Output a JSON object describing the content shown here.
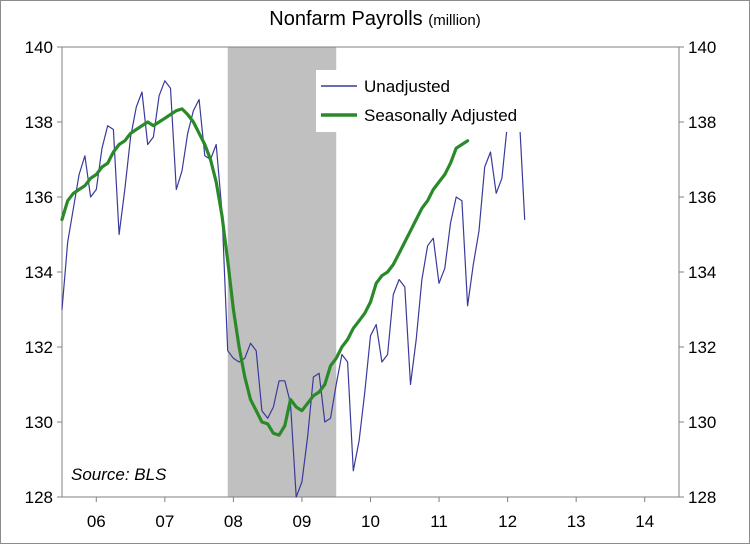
{
  "chart_data": {
    "type": "line",
    "title": "Nonfarm Payrolls",
    "title_unit": "(million)",
    "x_tick_labels": [
      "06",
      "07",
      "08",
      "09",
      "10",
      "11",
      "12",
      "13",
      "14"
    ],
    "x_range": [
      2005.5,
      2014.5
    ],
    "ylim": [
      128,
      140
    ],
    "y_ticks": [
      128,
      130,
      132,
      134,
      136,
      138,
      140
    ],
    "y_axes": "left and right, identical scale",
    "grid": false,
    "legend_position": "top-center",
    "recession_shading": {
      "start": 2007.917,
      "end": 2009.5,
      "color": "#c0c0c0"
    },
    "annotation": "Source: BLS",
    "series": [
      {
        "name": "Unadjusted",
        "color": "#3a3a9c",
        "start": 2005.5,
        "step": 0.08333,
        "values": [
          133.0,
          134.8,
          135.7,
          136.6,
          137.1,
          136.0,
          136.2,
          137.3,
          137.9,
          137.8,
          135.0,
          136.2,
          137.6,
          138.4,
          138.8,
          137.4,
          137.6,
          138.7,
          139.1,
          138.9,
          136.2,
          136.7,
          137.7,
          138.3,
          138.6,
          137.1,
          137.0,
          137.4,
          135.6,
          131.9,
          131.7,
          131.6,
          131.7,
          132.1,
          131.9,
          130.3,
          130.1,
          130.4,
          131.1,
          131.1,
          130.5,
          128.0,
          128.4,
          129.6,
          131.2,
          131.3,
          130.0,
          130.1,
          131.0,
          131.8,
          131.6,
          128.7,
          129.5,
          130.8,
          132.3,
          132.6,
          131.6,
          131.8,
          133.4,
          133.8,
          133.6,
          131.0,
          132.2,
          133.8,
          134.7,
          134.9,
          133.7,
          134.1,
          135.3,
          136.0,
          135.9,
          133.1,
          134.2,
          135.1,
          136.8,
          137.2,
          136.1,
          136.5,
          138.0,
          138.5,
          138.3,
          135.4
        ]
      },
      {
        "name": "Seasonally Adjusted",
        "color": "#2a8a2a",
        "start": 2005.5,
        "step": 0.08333,
        "values": [
          135.4,
          135.9,
          136.1,
          136.2,
          136.3,
          136.5,
          136.6,
          136.8,
          136.9,
          137.2,
          137.4,
          137.5,
          137.7,
          137.8,
          137.9,
          138.0,
          137.9,
          138.0,
          138.1,
          138.2,
          138.3,
          138.35,
          138.2,
          138.0,
          137.7,
          137.4,
          137.0,
          136.4,
          135.5,
          134.3,
          133.0,
          132.0,
          131.2,
          130.6,
          130.3,
          130.0,
          129.95,
          129.7,
          129.65,
          129.9,
          130.6,
          130.4,
          130.3,
          130.5,
          130.7,
          130.8,
          131.0,
          131.5,
          131.7,
          132.0,
          132.2,
          132.5,
          132.7,
          132.9,
          133.2,
          133.7,
          133.9,
          134.0,
          134.2,
          134.5,
          134.8,
          135.1,
          135.4,
          135.7,
          135.9,
          136.2,
          136.4,
          136.6,
          136.9,
          137.3,
          137.4,
          137.5
        ]
      }
    ]
  }
}
